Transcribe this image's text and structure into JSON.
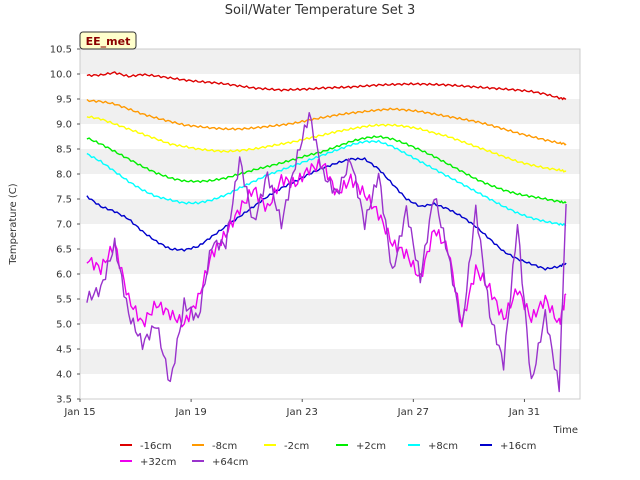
{
  "chart_data": {
    "type": "line",
    "title": "Soil/Water Temperature Set 3",
    "xlabel": "Time",
    "ylabel": "Temperature (C)",
    "badge": "EE_met",
    "ylim": [
      3.5,
      10.5
    ],
    "yticks": [
      "3.5",
      "4.0",
      "4.5",
      "5.0",
      "5.5",
      "6.0",
      "6.5",
      "7.0",
      "7.5",
      "8.0",
      "8.5",
      "9.0",
      "9.5",
      "10.0",
      "10.5"
    ],
    "xlim": [
      "2024-01-15",
      "2024-02-02"
    ],
    "xticks": [
      {
        "label": "Jan 15",
        "date": "2024-01-15"
      },
      {
        "label": "Jan 19",
        "date": "2024-01-19"
      },
      {
        "label": "Jan 23",
        "date": "2024-01-23"
      },
      {
        "label": "Jan 27",
        "date": "2024-01-27"
      },
      {
        "label": "Jan 31",
        "date": "2024-01-31"
      }
    ],
    "x": [
      "2024-01-15 06:00",
      "2024-01-15 18:00",
      "2024-01-16 06:00",
      "2024-01-16 18:00",
      "2024-01-17 06:00",
      "2024-01-17 18:00",
      "2024-01-18 06:00",
      "2024-01-18 18:00",
      "2024-01-19 06:00",
      "2024-01-19 18:00",
      "2024-01-20 06:00",
      "2024-01-20 18:00",
      "2024-01-21 06:00",
      "2024-01-21 18:00",
      "2024-01-22 06:00",
      "2024-01-22 18:00",
      "2024-01-23 06:00",
      "2024-01-23 18:00",
      "2024-01-24 06:00",
      "2024-01-24 18:00",
      "2024-01-25 06:00",
      "2024-01-25 18:00",
      "2024-01-26 06:00",
      "2024-01-26 18:00",
      "2024-01-27 06:00",
      "2024-01-27 18:00",
      "2024-01-28 06:00",
      "2024-01-28 18:00",
      "2024-01-29 06:00",
      "2024-01-29 18:00",
      "2024-01-30 06:00",
      "2024-01-30 18:00",
      "2024-01-31 06:00",
      "2024-01-31 18:00",
      "2024-02-01 06:00",
      "2024-02-01 12:00"
    ],
    "series": [
      {
        "name": "-16cm",
        "color": "#dd0000",
        "values": [
          9.97,
          9.98,
          10.03,
          9.95,
          9.99,
          9.96,
          9.92,
          9.88,
          9.85,
          9.83,
          9.8,
          9.76,
          9.72,
          9.7,
          9.68,
          9.69,
          9.7,
          9.72,
          9.73,
          9.74,
          9.76,
          9.78,
          9.79,
          9.8,
          9.8,
          9.79,
          9.78,
          9.76,
          9.74,
          9.72,
          9.7,
          9.68,
          9.65,
          9.6,
          9.52,
          9.5
        ]
      },
      {
        "name": "-8cm",
        "color": "#ff9900",
        "values": [
          9.47,
          9.45,
          9.4,
          9.3,
          9.2,
          9.12,
          9.05,
          8.98,
          8.95,
          8.92,
          8.9,
          8.9,
          8.92,
          8.95,
          8.98,
          9.02,
          9.08,
          9.13,
          9.18,
          9.22,
          9.25,
          9.28,
          9.3,
          9.28,
          9.25,
          9.2,
          9.15,
          9.1,
          9.05,
          8.98,
          8.9,
          8.82,
          8.75,
          8.68,
          8.62,
          8.6
        ]
      },
      {
        "name": "-2cm",
        "color": "#ffff00",
        "values": [
          9.15,
          9.1,
          9.0,
          8.9,
          8.8,
          8.7,
          8.6,
          8.55,
          8.5,
          8.47,
          8.45,
          8.47,
          8.5,
          8.55,
          8.6,
          8.65,
          8.72,
          8.78,
          8.85,
          8.9,
          8.95,
          8.98,
          8.98,
          8.95,
          8.9,
          8.82,
          8.75,
          8.65,
          8.55,
          8.45,
          8.35,
          8.25,
          8.18,
          8.12,
          8.08,
          8.05
        ]
      },
      {
        "name": "+2cm",
        "color": "#00ee00",
        "values": [
          8.72,
          8.6,
          8.45,
          8.3,
          8.15,
          8.02,
          7.92,
          7.86,
          7.85,
          7.87,
          7.92,
          8.0,
          8.08,
          8.15,
          8.22,
          8.3,
          8.38,
          8.45,
          8.55,
          8.65,
          8.72,
          8.75,
          8.7,
          8.6,
          8.48,
          8.35,
          8.2,
          8.05,
          7.9,
          7.78,
          7.68,
          7.6,
          7.55,
          7.5,
          7.45,
          7.42
        ]
      },
      {
        "name": "+8cm",
        "color": "#00ffff",
        "values": [
          8.4,
          8.25,
          8.05,
          7.85,
          7.68,
          7.55,
          7.48,
          7.42,
          7.42,
          7.48,
          7.58,
          7.72,
          7.85,
          7.98,
          8.08,
          8.18,
          8.28,
          8.38,
          8.48,
          8.58,
          8.65,
          8.65,
          8.55,
          8.4,
          8.25,
          8.1,
          7.95,
          7.8,
          7.65,
          7.5,
          7.35,
          7.22,
          7.12,
          7.05,
          7.0,
          6.98
        ]
      },
      {
        "name": "+16cm",
        "color": "#0000cc",
        "values": [
          7.55,
          7.35,
          7.25,
          7.1,
          6.85,
          6.65,
          6.5,
          6.48,
          6.55,
          6.75,
          6.95,
          7.15,
          7.35,
          7.55,
          7.72,
          7.85,
          8.0,
          8.12,
          8.22,
          8.3,
          8.3,
          8.1,
          7.8,
          7.5,
          7.35,
          7.4,
          7.3,
          7.15,
          6.95,
          6.7,
          6.45,
          6.3,
          6.2,
          6.1,
          6.15,
          6.22
        ]
      },
      {
        "name": "+32cm",
        "color": "#ee00ee",
        "values": [
          6.3,
          6.1,
          6.6,
          5.5,
          5.0,
          5.4,
          5.2,
          5.0,
          5.5,
          6.4,
          6.8,
          7.3,
          7.7,
          7.3,
          7.9,
          7.8,
          8.1,
          8.2,
          7.6,
          7.9,
          7.6,
          7.2,
          6.6,
          6.4,
          5.9,
          6.9,
          6.5,
          5.0,
          6.1,
          5.7,
          5.1,
          5.7,
          5.1,
          5.5,
          5.0,
          5.6
        ]
      },
      {
        "name": "+64cm",
        "color": "#9933cc",
        "values": [
          5.5,
          5.7,
          6.6,
          5.2,
          4.6,
          5.0,
          3.8,
          5.4,
          5.1,
          6.6,
          6.6,
          8.3,
          7.0,
          8.0,
          7.0,
          8.2,
          9.2,
          8.0,
          7.6,
          8.3,
          7.0,
          8.0,
          6.0,
          7.3,
          5.9,
          7.6,
          6.4,
          4.9,
          7.3,
          5.2,
          4.2,
          7.0,
          3.8,
          5.2,
          3.7,
          7.4
        ]
      }
    ]
  }
}
